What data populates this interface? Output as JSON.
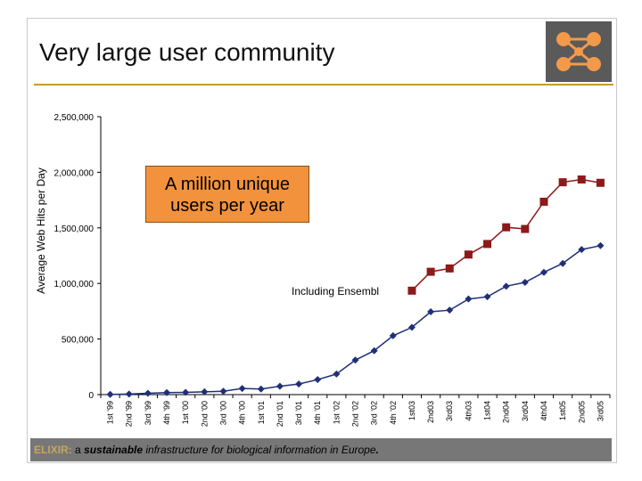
{
  "slide": {
    "title": "Very large user community",
    "callout": {
      "line1": "A million unique",
      "line2": "users per year"
    },
    "footer": {
      "brand": "ELIXIR:",
      "pre": " a ",
      "emphasis": "sustainable",
      "rest": " infrastructure for biological information in Europe",
      "end": "."
    },
    "logo": "elixir-logo"
  },
  "chart_data": {
    "type": "line",
    "ylabel": "Average Web Hits per Day",
    "ylim": [
      0,
      2500000
    ],
    "ytick_values": [
      0,
      500000,
      1000000,
      1500000,
      2000000,
      2500000
    ],
    "ytick_labels": [
      "0",
      "500,000",
      "1,000,000",
      "1,500,000",
      "2,000,000",
      "2,500,000"
    ],
    "categories": [
      "1st '99",
      "2nd '99",
      "3rd '99",
      "4th '99",
      "1st '00",
      "2nd '00",
      "3rd '00",
      "4th '00",
      "1st '01",
      "2nd '01",
      "3rd '01",
      "4th '01",
      "1st '02",
      "2nd '02",
      "3rd '02",
      "4th '02",
      "1st03",
      "2nd03",
      "3rd03",
      "4th03",
      "1st04",
      "2nd04",
      "3rd04",
      "4th04",
      "1st05",
      "2nd05",
      "3rd05"
    ],
    "annotation": "Including Ensembl",
    "series": [
      {
        "name": "Web hits",
        "color": "#1f2f78",
        "marker": "diamond",
        "values": [
          2000,
          5000,
          12000,
          18000,
          20000,
          25000,
          30000,
          55000,
          50000,
          75000,
          95000,
          135000,
          185000,
          310000,
          395000,
          530000,
          605000,
          745000,
          760000,
          860000,
          880000,
          975000,
          1010000,
          1100000,
          1180000,
          1305000,
          1340000
        ]
      },
      {
        "name": "Including Ensembl",
        "color": "#8b1a1a",
        "marker": "square",
        "values": [
          null,
          null,
          null,
          null,
          null,
          null,
          null,
          null,
          null,
          null,
          null,
          null,
          null,
          null,
          null,
          null,
          935000,
          1105000,
          1135000,
          1260000,
          1355000,
          1505000,
          1490000,
          1735000,
          1910000,
          1935000,
          1905000
        ]
      }
    ]
  }
}
